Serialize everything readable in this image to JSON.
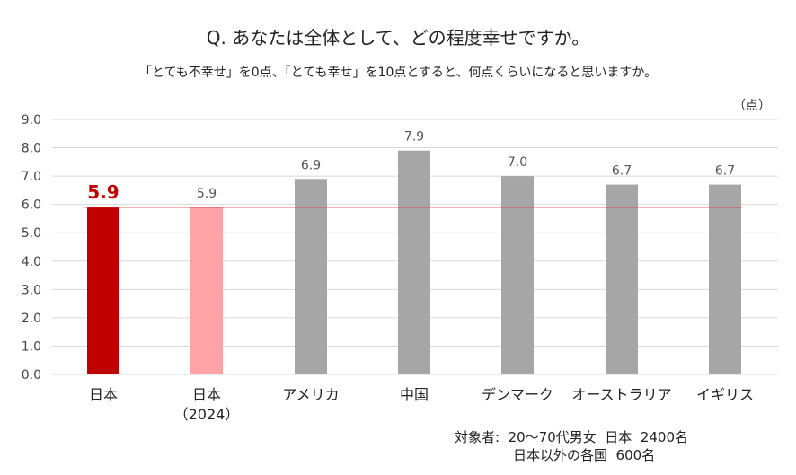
{
  "title": "Q. あなたは全体として、どの程度幸せですか。",
  "subtitle": "「とても不幸せ」を0点、「とても幸せ」を10点とすると、何点くらいになると思いますか。",
  "unit": "（点）",
  "note": {
    "line1": "対象者:  20〜70代男女  日本  2400名",
    "line2": "日本以外の各国  600名"
  },
  "colors": {
    "japan": "#c00000",
    "japan_2024": "#ffa3a6",
    "others": "#a6a6a6",
    "reference_line": "#e03030",
    "grid": "#d9d9d9",
    "highlight_label": "#c00000",
    "label": "#555555"
  },
  "chart_data": {
    "type": "bar",
    "categories": [
      [
        "日本"
      ],
      [
        "日本",
        "（2024）"
      ],
      [
        "アメリカ"
      ],
      [
        "中国"
      ],
      [
        "デンマーク"
      ],
      [
        "オーストラリア"
      ],
      [
        "イギリス"
      ]
    ],
    "values": [
      5.9,
      5.9,
      6.9,
      7.9,
      7.0,
      6.7,
      6.7
    ],
    "value_labels": [
      "5.9",
      "5.9",
      "6.9",
      "7.9",
      "7.0",
      "6.7",
      "6.7"
    ],
    "ylim": [
      0,
      9
    ],
    "yticks": [
      "0.0",
      "1.0",
      "2.0",
      "3.0",
      "4.0",
      "5.0",
      "6.0",
      "7.0",
      "8.0",
      "9.0"
    ],
    "reference_line_value": 5.9,
    "grid": true
  }
}
